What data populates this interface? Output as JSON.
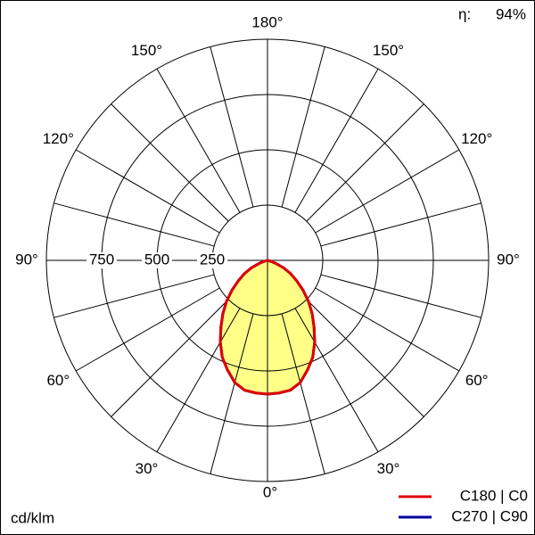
{
  "chart_data": {
    "type": "polar",
    "efficiency_label": "η:",
    "efficiency": "94%",
    "r_unit": "cd/klm",
    "rlim": [
      0,
      1000
    ],
    "rticks": [
      250,
      500,
      750
    ],
    "angle_ticks": [
      {
        "value": 0,
        "label": "0°"
      },
      {
        "value": 30,
        "label": "30°"
      },
      {
        "value": 60,
        "label": "60°"
      },
      {
        "value": 90,
        "label": "90°"
      },
      {
        "value": 120,
        "label": "120°"
      },
      {
        "value": 150,
        "label": "150°"
      },
      {
        "value": 180,
        "label": "180°"
      }
    ],
    "x": [
      -90,
      -85,
      -80,
      -75,
      -70,
      -65,
      -60,
      -55,
      -50,
      -45,
      -40,
      -35,
      -30,
      -25,
      -20,
      -15,
      -10,
      -5,
      0,
      5,
      10,
      15,
      20,
      25,
      30,
      35,
      40,
      45,
      50,
      55,
      60,
      65,
      70,
      75,
      80,
      85,
      90
    ],
    "series": [
      {
        "name": "C180 | C0",
        "color": "#e00000",
        "fill": "#ffff88",
        "values": [
          0,
          0,
          0,
          12,
          40,
          81,
          121,
          161,
          210,
          262,
          314,
          367,
          427,
          484,
          528,
          572,
          596,
          602,
          605,
          602,
          596,
          572,
          528,
          484,
          427,
          367,
          314,
          262,
          210,
          161,
          121,
          81,
          40,
          12,
          0,
          0,
          0
        ]
      },
      {
        "name": "C270 | C90",
        "color": "#0000a0",
        "values": [
          0,
          0,
          0,
          12,
          40,
          81,
          121,
          161,
          210,
          262,
          314,
          367,
          427,
          484,
          528,
          572,
          596,
          602,
          605,
          602,
          596,
          572,
          528,
          484,
          427,
          367,
          314,
          262,
          210,
          161,
          121,
          81,
          40,
          12,
          0,
          0,
          0
        ]
      }
    ]
  }
}
